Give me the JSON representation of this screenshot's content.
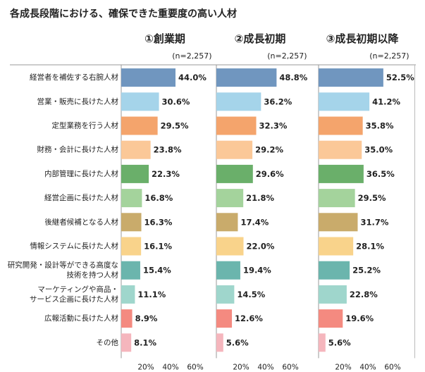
{
  "chart_data": {
    "type": "bar",
    "orientation": "horizontal",
    "title": "各成長段階における、確保できた重要度の高い人材",
    "categories": [
      [
        "経営者を補佐する右腕人材"
      ],
      [
        "営業・販売に長けた人材"
      ],
      [
        "定型業務を行う人材"
      ],
      [
        "財務・会計に長けた人材"
      ],
      [
        "内部管理に長けた人材"
      ],
      [
        "経営企画に長けた人材"
      ],
      [
        "後継者候補となる人材"
      ],
      [
        "情報システムに長けた人材"
      ],
      [
        "研究開発・設計等ができる高度な",
        "技術を持つ人材"
      ],
      [
        "マーケティングや商品・",
        "サービス企画に長けた人材"
      ],
      [
        "広報活動に長けた人材"
      ],
      [
        "その他"
      ]
    ],
    "bar_colors": [
      "#7096bf",
      "#a5d4ea",
      "#f4a46c",
      "#fbc898",
      "#6aaf6a",
      "#a4d39c",
      "#c9ab6b",
      "#f9d38b",
      "#6bb5ad",
      "#9fd6cc",
      "#f48a80",
      "#f5b6bd"
    ],
    "xlim": [
      0,
      70
    ],
    "x_ticks": [
      20,
      40,
      60
    ],
    "x_tick_labels": [
      "20%",
      "40%",
      "60%"
    ],
    "value_suffix": "%",
    "series": [
      {
        "name": "①創業期",
        "n_label": "(n=2,257)",
        "values": [
          44.0,
          30.6,
          29.5,
          23.8,
          22.3,
          16.8,
          16.3,
          16.1,
          15.4,
          11.1,
          8.9,
          8.1
        ]
      },
      {
        "name": "②成長初期",
        "n_label": "(n=2,257)",
        "values": [
          48.8,
          36.2,
          32.3,
          29.2,
          29.6,
          21.8,
          17.4,
          22.0,
          19.4,
          14.5,
          12.6,
          5.6
        ]
      },
      {
        "name": "③成長初期以降",
        "n_label": "(n=2,257)",
        "values": [
          52.5,
          41.2,
          35.8,
          35.0,
          36.5,
          29.5,
          31.7,
          28.1,
          25.2,
          22.8,
          19.6,
          5.6
        ]
      }
    ]
  }
}
